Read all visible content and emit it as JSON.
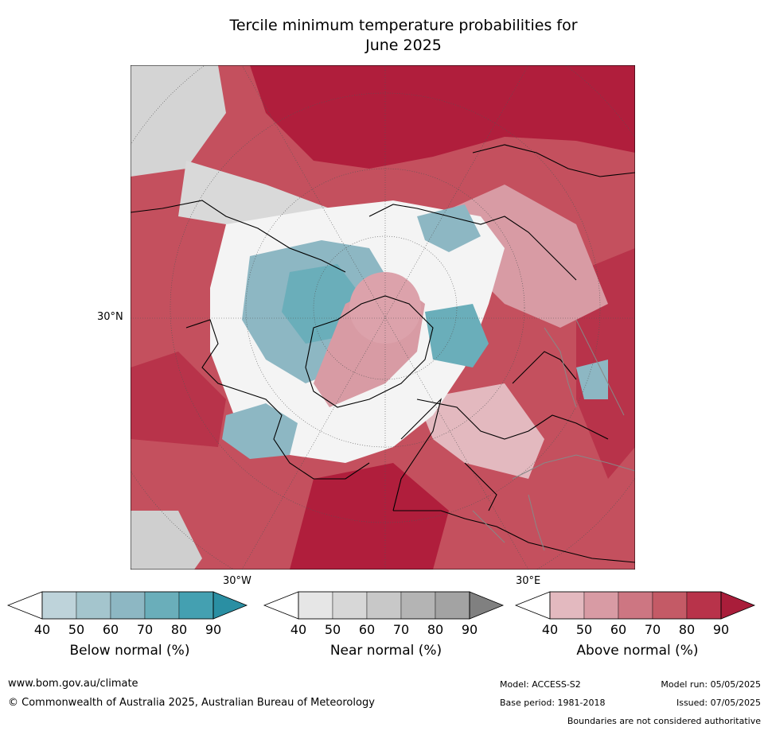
{
  "title_line1": "Tercile minimum temperature probabilities for",
  "title_line2": "June 2025",
  "map": {
    "projection": "north polar stereographic",
    "lat_label": "30°N",
    "lon_label_left": "30°W",
    "lon_label_right": "30°E"
  },
  "legends": [
    {
      "title": "Below normal (%)",
      "ticks": [
        "40",
        "50",
        "60",
        "70",
        "80",
        "90"
      ],
      "colors": [
        "#bed3da",
        "#a4c5cd",
        "#8db7c3",
        "#6aaeba",
        "#44a0b1",
        "#2a8fa3"
      ]
    },
    {
      "title": "Near normal (%)",
      "ticks": [
        "40",
        "50",
        "60",
        "70",
        "80",
        "90"
      ],
      "colors": [
        "#e6e6e6",
        "#d7d7d7",
        "#c8c8c8",
        "#b4b4b4",
        "#a3a3a3",
        "#808080"
      ]
    },
    {
      "title": "Above normal (%)",
      "ticks": [
        "40",
        "50",
        "60",
        "70",
        "80",
        "90"
      ],
      "colors": [
        "#e3b9bf",
        "#d89ba4",
        "#cd7682",
        "#c45a66",
        "#b8334a",
        "#a91d3a"
      ]
    }
  ],
  "footer": {
    "website": "www.bom.gov.au/climate",
    "copyright": "© Commonwealth of Australia 2025, Australian Bureau of Meteorology",
    "model": "Model: ACCESS-S2",
    "model_run": "Model run: 05/05/2025",
    "base_period": "Base period: 1981-2018",
    "issued": "Issued: 07/05/2025",
    "disclaimer": "Boundaries are not considered authoritative"
  }
}
